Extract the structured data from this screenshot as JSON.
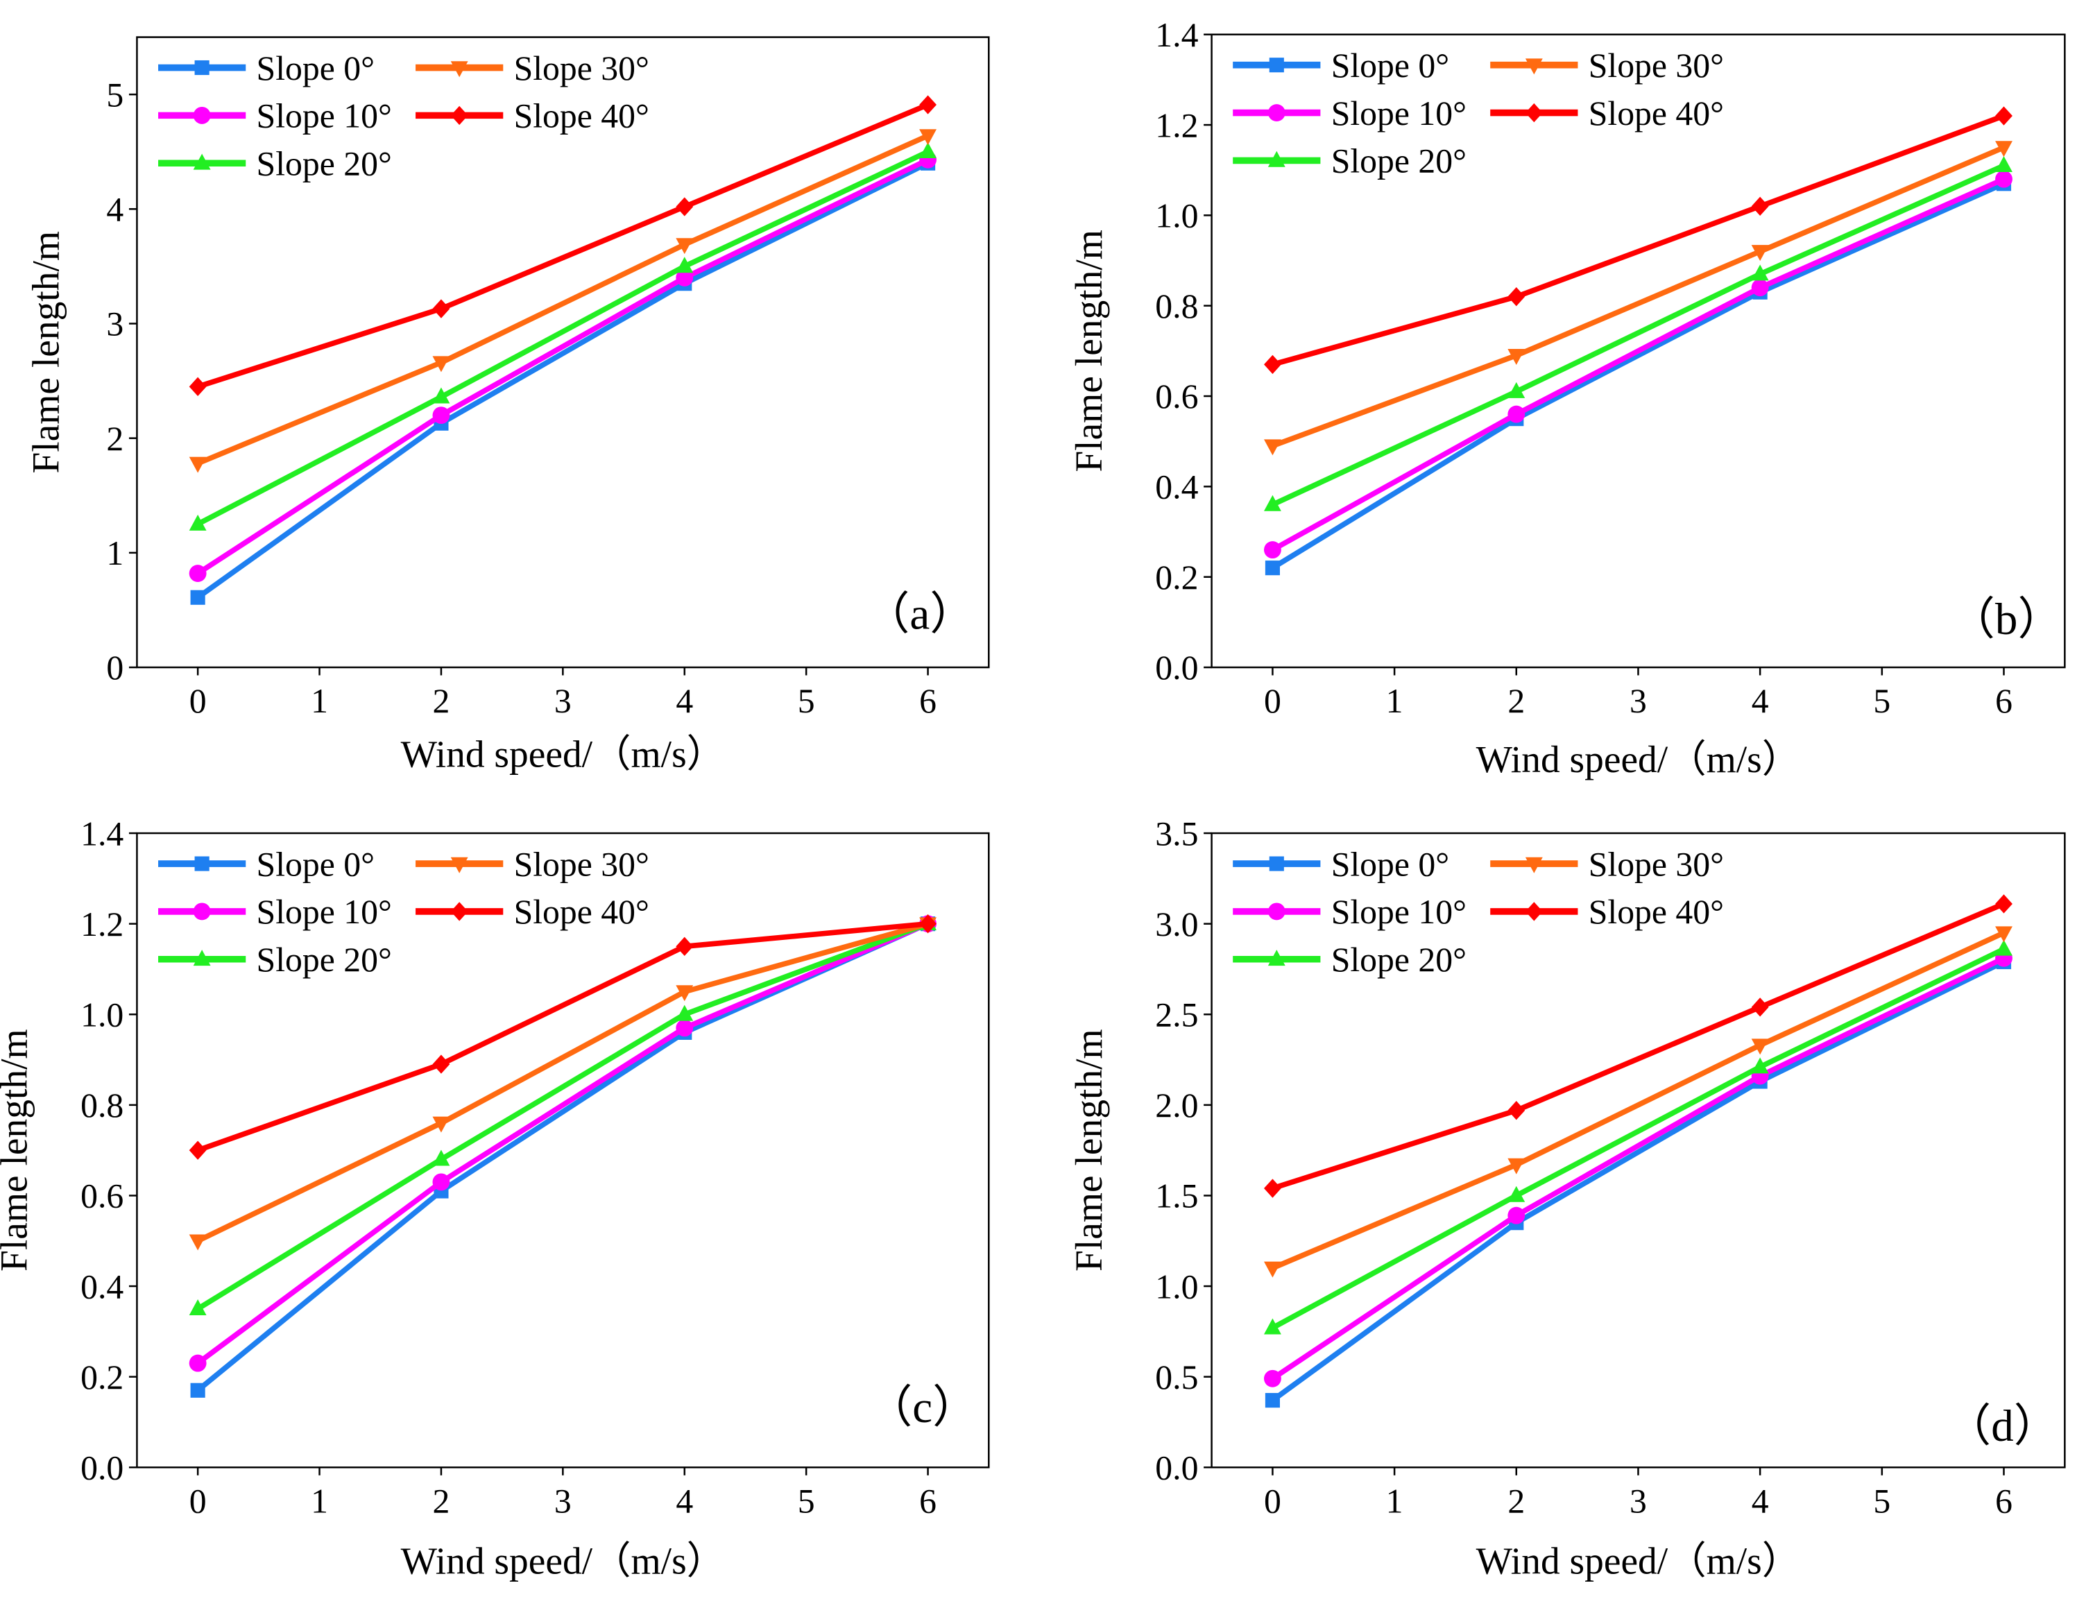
{
  "chart_data": [
    {
      "type": "line",
      "panel_label": "（a）",
      "xlabel": "Wind speed/（m/s）",
      "ylabel": "Flame length/m",
      "xlim": [
        -0.5,
        6.5
      ],
      "ylim": [
        0,
        5.5
      ],
      "xticks": [
        0,
        1,
        2,
        3,
        4,
        5,
        6
      ],
      "yticks": [
        0,
        1,
        2,
        3,
        4,
        5
      ],
      "ytick_decimals": 0,
      "legend_position": "top-left",
      "x": [
        0,
        2,
        4,
        6
      ],
      "series": [
        {
          "name": "Slope 0°",
          "values": [
            0.61,
            2.13,
            3.35,
            4.4
          ]
        },
        {
          "name": "Slope 10°",
          "values": [
            0.82,
            2.2,
            3.4,
            4.43
          ]
        },
        {
          "name": "Slope 20°",
          "values": [
            1.25,
            2.36,
            3.5,
            4.5
          ]
        },
        {
          "name": "Slope 30°",
          "values": [
            1.78,
            2.66,
            3.69,
            4.64
          ]
        },
        {
          "name": "Slope 40°",
          "values": [
            2.45,
            3.13,
            4.02,
            4.91
          ]
        }
      ]
    },
    {
      "type": "line",
      "panel_label": "（b）",
      "xlabel": "Wind speed/（m/s）",
      "ylabel": "Flame length/m",
      "xlim": [
        -0.5,
        6.5
      ],
      "ylim": [
        0,
        1.4
      ],
      "xticks": [
        0,
        1,
        2,
        3,
        4,
        5,
        6
      ],
      "yticks": [
        0,
        0.2,
        0.4,
        0.6,
        0.8,
        1.0,
        1.2,
        1.4
      ],
      "ytick_decimals": 1,
      "legend_position": "top-left",
      "x": [
        0,
        2,
        4,
        6
      ],
      "series": [
        {
          "name": "Slope 0°",
          "values": [
            0.22,
            0.55,
            0.83,
            1.07
          ]
        },
        {
          "name": "Slope 10°",
          "values": [
            0.26,
            0.56,
            0.84,
            1.08
          ]
        },
        {
          "name": "Slope 20°",
          "values": [
            0.36,
            0.61,
            0.87,
            1.11
          ]
        },
        {
          "name": "Slope 30°",
          "values": [
            0.49,
            0.69,
            0.92,
            1.15
          ]
        },
        {
          "name": "Slope 40°",
          "values": [
            0.67,
            0.82,
            1.02,
            1.22
          ]
        }
      ]
    },
    {
      "type": "line",
      "panel_label": "（c）",
      "xlabel": "Wind speed/（m/s）",
      "ylabel": "Flame length/m",
      "xlim": [
        -0.5,
        6.5
      ],
      "ylim": [
        0,
        1.4
      ],
      "xticks": [
        0,
        1,
        2,
        3,
        4,
        5,
        6
      ],
      "yticks": [
        0,
        0.2,
        0.4,
        0.6,
        0.8,
        1.0,
        1.2,
        1.4
      ],
      "ytick_decimals": 1,
      "legend_position": "top-left",
      "x": [
        0,
        2,
        4,
        6
      ],
      "series": [
        {
          "name": "Slope 0°",
          "values": [
            0.17,
            0.61,
            0.96,
            1.2
          ]
        },
        {
          "name": "Slope 10°",
          "values": [
            0.23,
            0.63,
            0.97,
            1.2
          ]
        },
        {
          "name": "Slope 20°",
          "values": [
            0.35,
            0.68,
            1.0,
            1.2
          ]
        },
        {
          "name": "Slope 30°",
          "values": [
            0.5,
            0.76,
            1.05,
            1.2
          ]
        },
        {
          "name": "Slope 40°",
          "values": [
            0.7,
            0.89,
            1.15,
            1.2
          ]
        }
      ]
    },
    {
      "type": "line",
      "panel_label": "（d）",
      "xlabel": "Wind speed/（m/s）",
      "ylabel": "Flame length/m",
      "xlim": [
        -0.5,
        6.5
      ],
      "ylim": [
        0,
        3.5
      ],
      "xticks": [
        0,
        1,
        2,
        3,
        4,
        5,
        6
      ],
      "yticks": [
        0,
        0.5,
        1.0,
        1.5,
        2.0,
        2.5,
        3.0,
        3.5
      ],
      "ytick_decimals": 1,
      "legend_position": "top-left",
      "x": [
        0,
        2,
        4,
        6
      ],
      "series": [
        {
          "name": "Slope 0°",
          "values": [
            0.37,
            1.35,
            2.13,
            2.79
          ]
        },
        {
          "name": "Slope 10°",
          "values": [
            0.49,
            1.39,
            2.16,
            2.81
          ]
        },
        {
          "name": "Slope 20°",
          "values": [
            0.77,
            1.5,
            2.21,
            2.86
          ]
        },
        {
          "name": "Slope 30°",
          "values": [
            1.1,
            1.67,
            2.33,
            2.95
          ]
        },
        {
          "name": "Slope 40°",
          "values": [
            1.54,
            1.97,
            2.54,
            3.11
          ]
        }
      ]
    }
  ],
  "series_styles": [
    {
      "color": "#1E7FF0",
      "marker": "square"
    },
    {
      "color": "#FF00FF",
      "marker": "circle"
    },
    {
      "color": "#22EE22",
      "marker": "triangle-up"
    },
    {
      "color": "#FF6A10",
      "marker": "triangle-down"
    },
    {
      "color": "#FF0000",
      "marker": "diamond"
    }
  ]
}
